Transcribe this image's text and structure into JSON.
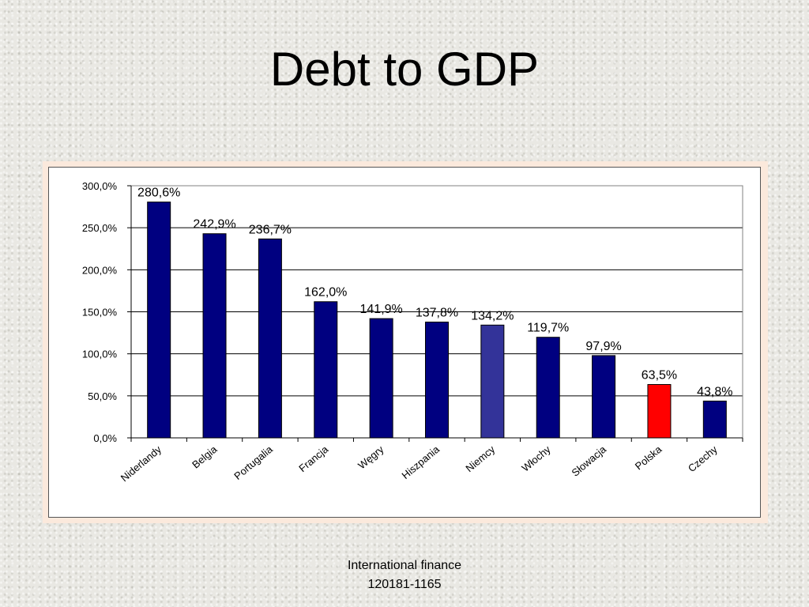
{
  "slide": {
    "title": "Debt to GDP",
    "footer_line1": "International finance",
    "footer_line2": "120181-1165"
  },
  "chart_data": {
    "type": "bar",
    "title": "",
    "xlabel": "",
    "ylabel": "",
    "ylim": [
      0,
      300
    ],
    "yticks": [
      0,
      50,
      100,
      150,
      200,
      250,
      300
    ],
    "ytick_labels": [
      "0,0%",
      "50,0%",
      "100,0%",
      "150,0%",
      "200,0%",
      "250,0%",
      "300,0%"
    ],
    "grid": true,
    "legend": "none",
    "categories": [
      "Niderlandy",
      "Belgia",
      "Portugalia",
      "Francja",
      "Węgry",
      "Hiszpania",
      "Niemcy",
      "Włochy",
      "Słowacja",
      "Polska",
      "Czechy"
    ],
    "values": [
      280.6,
      242.9,
      236.7,
      162.0,
      141.9,
      137.8,
      134.2,
      119.7,
      97.9,
      63.5,
      43.8
    ],
    "data_labels": [
      "280,6%",
      "242,9%",
      "236,7%",
      "162,0%",
      "141,9%",
      "137,8%",
      "134,2%",
      "119,7%",
      "97,9%",
      "63,5%",
      "43,8%"
    ],
    "colors": {
      "default": "#000080",
      "Niemcy": "#333399",
      "Polska": "#ff0000"
    }
  }
}
